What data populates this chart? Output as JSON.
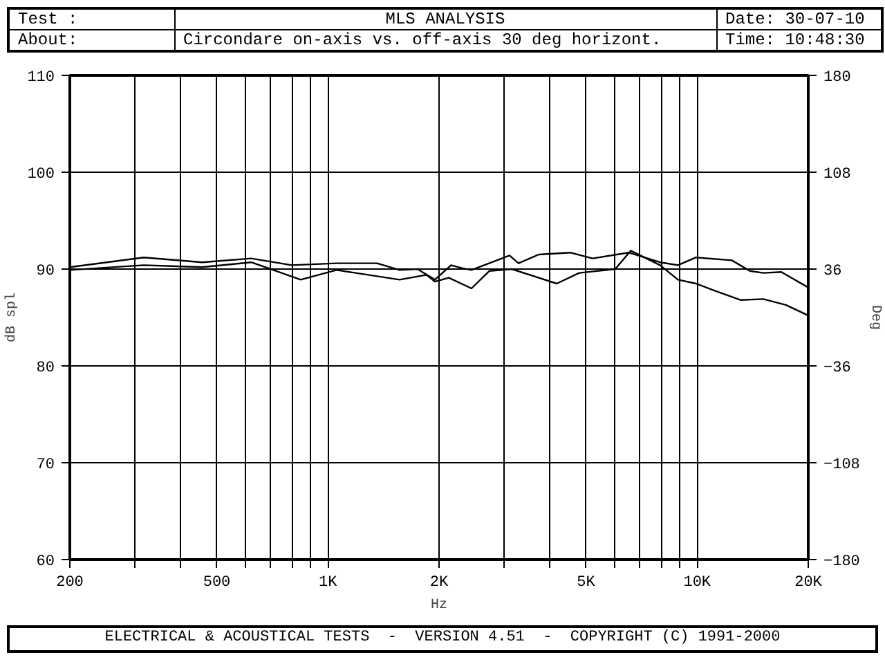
{
  "chart_data": {
    "type": "line",
    "title": "MLS ANALYSIS",
    "subtitle": "Circondare on-axis vs. off-axis 30 deg horizont.",
    "annotations": [
      "Test :",
      "About:",
      "Date: 30-07-10",
      "Time: 10:48:30",
      "ELECTRICAL & ACOUSTICAL TESTS  -  VERSION 4.51  -  COPYRIGHT (C) 1991-2000"
    ],
    "xlabel": "Hz",
    "ylabel": "dB spl",
    "y2label": "Deg",
    "log": "x",
    "grid": true,
    "xlim": [
      200,
      20000
    ],
    "ylim": [
      60,
      110
    ],
    "y2lim": [
      -180,
      180
    ],
    "xticks": [
      200,
      {
        "value": 300,
        "label": null
      },
      {
        "value": 400,
        "label": null
      },
      500,
      {
        "value": 600,
        "label": null
      },
      {
        "value": 700,
        "label": null
      },
      {
        "value": 800,
        "label": null
      },
      {
        "value": 900,
        "label": null
      },
      {
        "value": 1000,
        "label": "1K"
      },
      {
        "value": 2000,
        "label": "2K"
      },
      {
        "value": 3000,
        "label": null
      },
      {
        "value": 4000,
        "label": null
      },
      {
        "value": 5000,
        "label": "5K"
      },
      {
        "value": 6000,
        "label": null
      },
      {
        "value": 7000,
        "label": null
      },
      {
        "value": 8000,
        "label": null
      },
      {
        "value": 9000,
        "label": null
      },
      {
        "value": 10000,
        "label": "10K"
      },
      {
        "value": 20000,
        "label": "20K"
      }
    ],
    "yticks": [
      60,
      70,
      80,
      90,
      100,
      110
    ],
    "y2ticks": [
      -180,
      -108,
      -36,
      36,
      108,
      180
    ],
    "series": [
      {
        "color": "#000000",
        "x": [
          200,
          317,
          456,
          620,
          798,
          1056,
          1359,
          1564,
          1748,
          1950,
          2156,
          2307,
          2448,
          3104,
          3283,
          3724,
          4530,
          5212,
          6525,
          7937,
          8874,
          9933,
          12420,
          13900,
          15110,
          16910,
          20000
        ],
        "values": [
          90.2,
          91.2,
          90.7,
          91.1,
          90.4,
          90.6,
          90.6,
          89.9,
          90.0,
          88.9,
          90.4,
          90.1,
          89.9,
          91.4,
          90.6,
          91.5,
          91.7,
          91.1,
          91.7,
          90.7,
          90.4,
          91.2,
          90.9,
          89.8,
          89.6,
          89.7,
          88.1
        ]
      },
      {
        "color": "#000000",
        "x": [
          200,
          317,
          456,
          620,
          844,
          1056,
          1564,
          1850,
          1950,
          2127,
          2448,
          2736,
          3148,
          4166,
          4792,
          6000,
          6610,
          7937,
          8874,
          9933,
          11104,
          13140,
          15110,
          17390,
          20000
        ],
        "values": [
          89.9,
          90.4,
          90.2,
          90.7,
          88.9,
          89.9,
          88.9,
          89.4,
          88.7,
          89.1,
          88.0,
          89.8,
          90.0,
          88.5,
          89.6,
          90.0,
          91.9,
          90.4,
          88.9,
          88.5,
          87.8,
          86.8,
          86.9,
          86.3,
          85.2
        ]
      }
    ]
  }
}
